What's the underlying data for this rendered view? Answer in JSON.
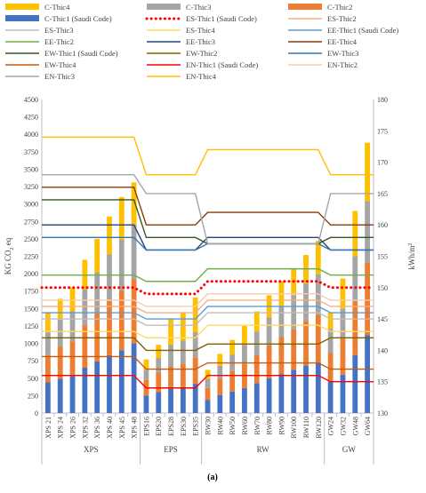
{
  "chart_data": {
    "type": "bar",
    "categories": [
      "XPS 21",
      "XPS 24",
      "XPS 26",
      "XPS 32",
      "XPS 36",
      "XPS 40",
      "XPS 45",
      "XPS 48",
      "EPS16",
      "EPS20",
      "EPS28",
      "EPS30",
      "EPS35",
      "RW30",
      "RW40",
      "RW50",
      "RW60",
      "RW70",
      "RW80",
      "RW90",
      "RW100",
      "RW110",
      "RW120",
      "GW24",
      "GW32",
      "GW48",
      "GW64"
    ],
    "groups": [
      {
        "label": "XPS",
        "start": 0,
        "end": 7
      },
      {
        "label": "EPS",
        "start": 8,
        "end": 12
      },
      {
        "label": "RW",
        "start": 13,
        "end": 22
      },
      {
        "label": "GW",
        "start": 23,
        "end": 26
      }
    ],
    "ylabel_left": "KG CO",
    "ylabel_left_sub": "2",
    "ylabel_left_tail": " eq",
    "ylabel_right": "kWh/m",
    "ylabel_right_sup": "2",
    "ylim_left": [
      0,
      4500
    ],
    "ylim_right": [
      130,
      180
    ],
    "yticks_left": [
      "0",
      "250",
      "500",
      "750",
      "1000",
      "1250",
      "1500",
      "1750",
      "2000",
      "2250",
      "2500",
      "2750",
      "3000",
      "3250",
      "3500",
      "3750",
      "4000",
      "4250",
      "4500"
    ],
    "yticks_right": [
      "130",
      "135",
      "140",
      "145",
      "150",
      "155",
      "160",
      "165",
      "170",
      "175",
      "180"
    ],
    "caption": "(a)",
    "bar_series": [
      {
        "name": "C-Thic1 (Saudi Code)",
        "color": "#4472C4",
        "values": [
          440,
          490,
          530,
          650,
          740,
          830,
          900,
          1000,
          250,
          300,
          350,
          370,
          420,
          190,
          260,
          310,
          360,
          430,
          500,
          560,
          620,
          680,
          730,
          450,
          550,
          830,
          1120
        ]
      },
      {
        "name": "C-Thic2",
        "color": "#ED7D31",
        "values": [
          390,
          460,
          500,
          610,
          690,
          780,
          860,
          920,
          230,
          280,
          320,
          340,
          380,
          170,
          230,
          290,
          340,
          400,
          470,
          530,
          580,
          640,
          680,
          410,
          520,
          770,
          1040
        ]
      },
      {
        "name": "C-Thic3",
        "color": "#A5A5A5",
        "values": [
          340,
          390,
          430,
          520,
          590,
          670,
          730,
          790,
          140,
          210,
          310,
          330,
          360,
          130,
          190,
          240,
          280,
          340,
          400,
          450,
          490,
          540,
          580,
          350,
          430,
          650,
          880
        ]
      },
      {
        "name": "C-Thic4",
        "color": "#FFC000",
        "values": [
          270,
          300,
          340,
          420,
          480,
          540,
          610,
          600,
          150,
          190,
          380,
          410,
          500,
          130,
          170,
          210,
          270,
          290,
          320,
          350,
          380,
          410,
          480,
          230,
          430,
          650,
          840
        ]
      }
    ],
    "line_series": [
      {
        "name": "ES-Thic1 (Saudi Code)",
        "color": "#FF0000",
        "dash": "dotted",
        "values": [
          150,
          150,
          150,
          150,
          150,
          150,
          150,
          150,
          149,
          149,
          149,
          149,
          149,
          151,
          151,
          151,
          151,
          151,
          151,
          151,
          151,
          151,
          151,
          150,
          150,
          150,
          150
        ]
      },
      {
        "name": "ES-Thic2",
        "color": "#F4B183",
        "values": [
          147,
          147,
          147,
          147,
          147,
          147,
          147,
          147,
          146,
          146,
          146,
          146,
          146,
          148,
          148,
          148,
          148,
          148,
          148,
          148,
          148,
          148,
          148,
          147,
          147,
          147,
          147
        ]
      },
      {
        "name": "ES-Thic3",
        "color": "#BFBFBF",
        "values": [
          145,
          145,
          145,
          145,
          145,
          145,
          145,
          145,
          144,
          144,
          144,
          144,
          144,
          146,
          146,
          146,
          146,
          146,
          146,
          146,
          146,
          146,
          146,
          145,
          145,
          145,
          145
        ]
      },
      {
        "name": "ES-Thic4",
        "color": "#FFD966",
        "values": [
          143,
          143,
          143,
          143,
          143,
          143,
          143,
          143,
          142,
          142,
          142,
          142,
          142,
          144,
          144,
          144,
          144,
          144,
          144,
          144,
          144,
          144,
          144,
          143,
          143,
          143,
          143
        ]
      },
      {
        "name": "EE-Thic1 (Saudi Code)",
        "color": "#5B9BD5",
        "values": [
          146,
          146,
          146,
          146,
          146,
          146,
          146,
          146,
          145,
          145,
          145,
          145,
          145,
          147,
          147,
          147,
          147,
          147,
          147,
          147,
          147,
          147,
          147,
          146,
          146,
          146,
          146
        ]
      },
      {
        "name": "EE-Thic2",
        "color": "#70AD47",
        "values": [
          152,
          152,
          152,
          152,
          152,
          152,
          152,
          152,
          151,
          151,
          151,
          151,
          151,
          153,
          153,
          153,
          153,
          153,
          153,
          153,
          153,
          153,
          153,
          152,
          152,
          152,
          152
        ]
      },
      {
        "name": "EE-Thic3",
        "color": "#264478",
        "values": [
          160,
          160,
          160,
          160,
          160,
          160,
          160,
          160,
          156,
          156,
          156,
          156,
          156,
          158,
          158,
          158,
          158,
          158,
          158,
          158,
          158,
          158,
          158,
          156,
          156,
          156,
          156
        ]
      },
      {
        "name": "EE-Thic4",
        "color": "#843C0C",
        "values": [
          166,
          166,
          166,
          166,
          166,
          166,
          166,
          166,
          160,
          160,
          160,
          160,
          160,
          162,
          162,
          162,
          162,
          162,
          162,
          162,
          162,
          162,
          162,
          160,
          160,
          160,
          160
        ]
      },
      {
        "name": "EW-Thic1 (Saudi Code)",
        "color": "#375623",
        "values": [
          164,
          164,
          164,
          164,
          164,
          164,
          164,
          164,
          158,
          158,
          158,
          158,
          158,
          157,
          157,
          157,
          157,
          157,
          157,
          157,
          157,
          157,
          157,
          158,
          158,
          158,
          158
        ]
      },
      {
        "name": "EW-Thic2",
        "color": "#806000",
        "values": [
          142,
          142,
          142,
          142,
          142,
          142,
          142,
          142,
          140,
          140,
          140,
          140,
          140,
          141,
          141,
          141,
          141,
          141,
          141,
          141,
          141,
          141,
          141,
          142,
          142,
          142,
          142
        ]
      },
      {
        "name": "EW-Thic3",
        "color": "#2F75B5",
        "values": [
          158,
          158,
          158,
          158,
          158,
          158,
          158,
          158,
          156,
          156,
          156,
          156,
          156,
          157,
          157,
          157,
          157,
          157,
          157,
          157,
          157,
          157,
          157,
          156,
          156,
          156,
          156
        ]
      },
      {
        "name": "EW-Thic4",
        "color": "#C55A11",
        "values": [
          139,
          139,
          139,
          139,
          139,
          139,
          139,
          139,
          137,
          137,
          137,
          137,
          137,
          138,
          138,
          138,
          138,
          138,
          138,
          138,
          138,
          138,
          138,
          137,
          137,
          137,
          137
        ]
      },
      {
        "name": "EN-Thic1 (Saudi Code)",
        "color": "#FF0000",
        "values": [
          136,
          136,
          136,
          136,
          136,
          136,
          136,
          136,
          134,
          134,
          134,
          134,
          134,
          136,
          136,
          136,
          136,
          136,
          136,
          136,
          136,
          136,
          136,
          135,
          135,
          135,
          135
        ]
      },
      {
        "name": "EN-Thic2",
        "color": "#F8CBAD",
        "values": [
          148,
          148,
          148,
          148,
          148,
          148,
          148,
          148,
          147,
          147,
          147,
          147,
          147,
          149,
          149,
          149,
          149,
          149,
          149,
          149,
          149,
          149,
          149,
          148,
          148,
          148,
          148
        ]
      },
      {
        "name": "EN-Thic3",
        "color": "#A6A6A6",
        "values": [
          168,
          168,
          168,
          168,
          168,
          168,
          168,
          168,
          165,
          165,
          165,
          165,
          165,
          157,
          157,
          157,
          157,
          157,
          157,
          157,
          157,
          157,
          157,
          165,
          165,
          165,
          165
        ]
      },
      {
        "name": "EN-Thic4",
        "color": "#FFC000",
        "values": [
          174,
          174,
          174,
          174,
          174,
          174,
          174,
          174,
          168,
          168,
          168,
          168,
          168,
          172,
          172,
          172,
          172,
          172,
          172,
          172,
          172,
          172,
          172,
          168,
          168,
          168,
          168
        ]
      }
    ],
    "legend": [
      "C-Thic4",
      "C-Thic3",
      "C-Thic2",
      "C-Thic1 (Saudi Code)",
      "ES-Thic1 (Saudi Code)",
      "ES-Thic2",
      "ES-Thic3",
      "ES-Thic4",
      "EE-Thic1 (Saudi Code)",
      "EE-Thic2",
      "EE-Thic3",
      "EE-Thic4",
      "EW-Thic1 (Saudi Code)",
      "EW-Thic2",
      "EW-Thic3",
      "EW-Thic4",
      "EN-Thic1 (Saudi Code)",
      "EN-Thic2",
      "EN-Thic3",
      "EN-Thic4"
    ],
    "legend_colors": {
      "C-Thic4": "#FFC000",
      "C-Thic3": "#A5A5A5",
      "C-Thic2": "#ED7D31",
      "C-Thic1 (Saudi Code)": "#4472C4",
      "ES-Thic1 (Saudi Code)": "#FF0000",
      "ES-Thic2": "#F4B183",
      "ES-Thic3": "#BFBFBF",
      "ES-Thic4": "#FFD966",
      "EE-Thic1 (Saudi Code)": "#5B9BD5",
      "EE-Thic2": "#70AD47",
      "EE-Thic3": "#264478",
      "EE-Thic4": "#843C0C",
      "EW-Thic1 (Saudi Code)": "#375623",
      "EW-Thic2": "#806000",
      "EW-Thic3": "#2F75B5",
      "EW-Thic4": "#C55A11",
      "EN-Thic1 (Saudi Code)": "#FF0000",
      "EN-Thic2": "#F8CBAD",
      "EN-Thic3": "#A6A6A6",
      "EN-Thic4": "#FFC000"
    },
    "legend_placement": "top",
    "grid": false
  }
}
